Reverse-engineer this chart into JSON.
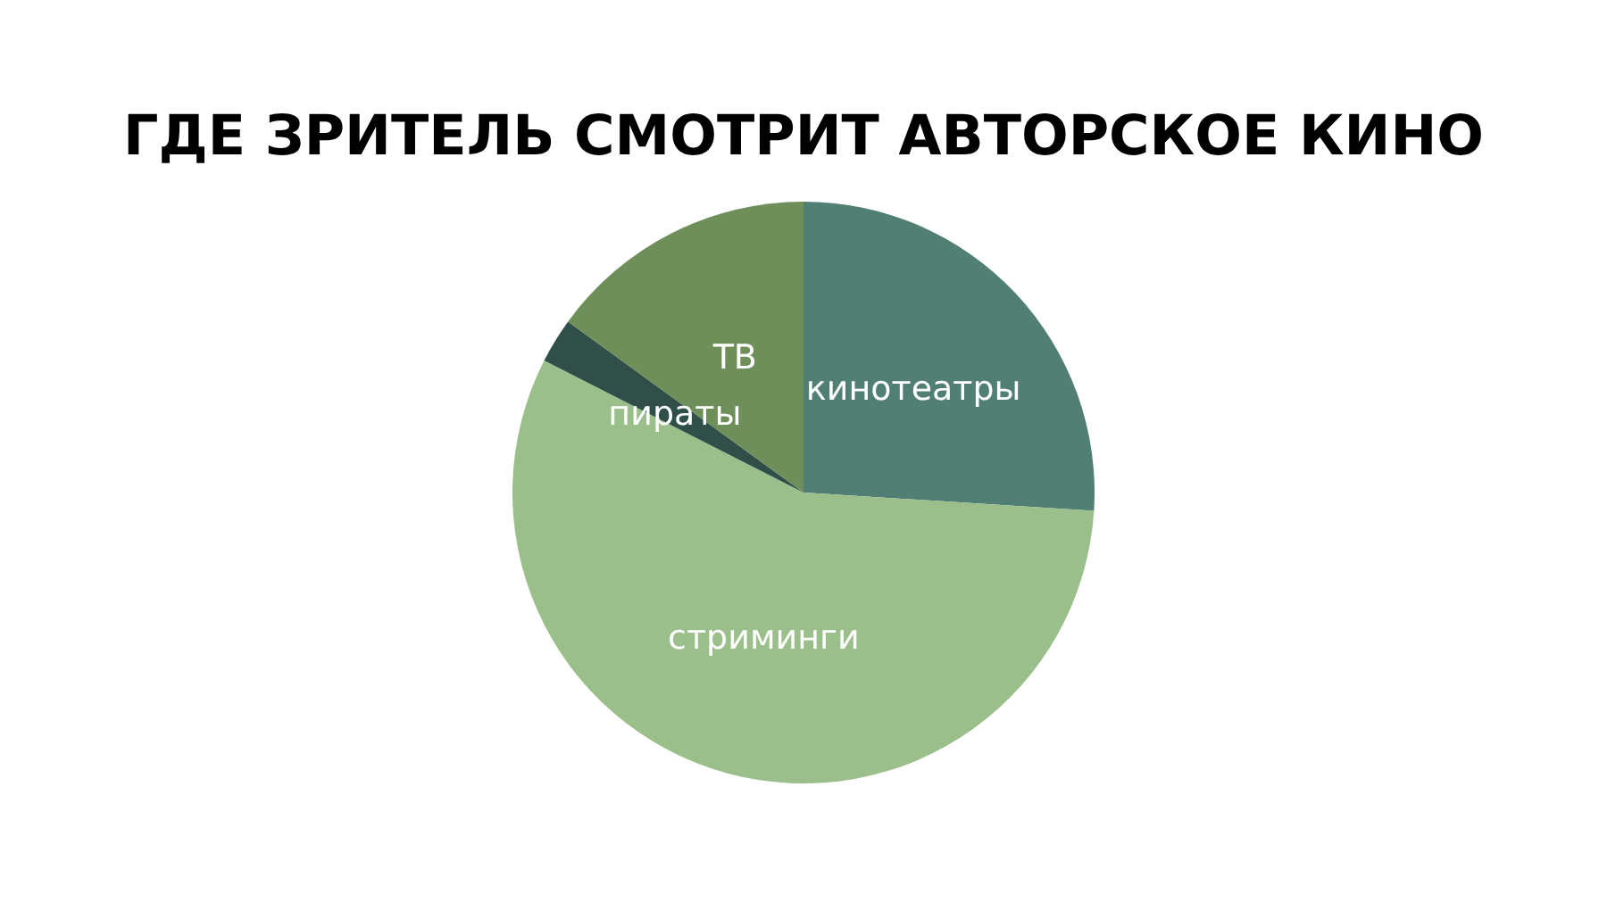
{
  "chart_data": {
    "type": "pie",
    "title": "ГДЕ ЗРИТЕЛЬ СМОТРИТ АВТОРСКОЕ КИНО",
    "categories": [
      "кинотеатры",
      "стриминги",
      "пираты",
      "ТВ"
    ],
    "values": [
      26,
      56.5,
      2.5,
      15
    ],
    "colors": [
      "#527f73",
      "#9bbf8a",
      "#2f4f48",
      "#6e8f5a"
    ],
    "legend": false
  }
}
